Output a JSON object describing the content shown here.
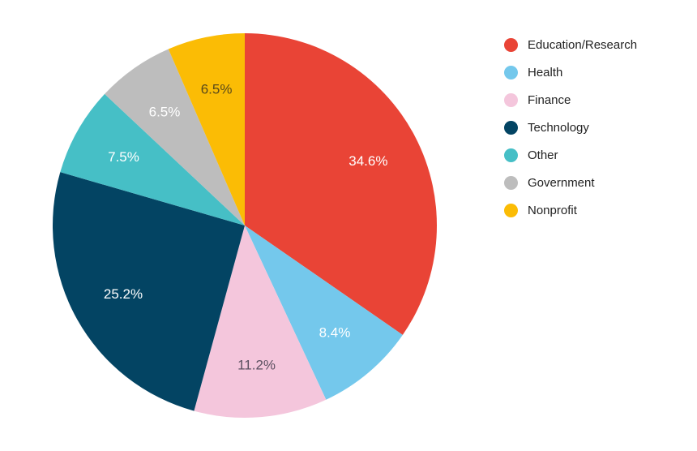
{
  "chart_data": {
    "type": "pie",
    "title": "",
    "legend_position": "right",
    "slices": [
      {
        "label": "Education/Research",
        "value": 34.6,
        "display": "34.6%",
        "color": "#E94436",
        "text_color": "#ffffff"
      },
      {
        "label": "Health",
        "value": 8.4,
        "display": "8.4%",
        "color": "#74C8EC",
        "text_color": "#ffffff"
      },
      {
        "label": "Finance",
        "value": 11.2,
        "display": "11.2%",
        "color": "#F4C6DC",
        "text_color": "#5b5060"
      },
      {
        "label": "Technology",
        "value": 25.2,
        "display": "25.2%",
        "color": "#034463",
        "text_color": "#ffffff"
      },
      {
        "label": "Other",
        "value": 7.5,
        "display": "7.5%",
        "color": "#46BFC6",
        "text_color": "#ffffff"
      },
      {
        "label": "Government",
        "value": 6.5,
        "display": "6.5%",
        "color": "#BDBDBD",
        "text_color": "#ffffff"
      },
      {
        "label": "Nonprofit",
        "value": 6.5,
        "display": "6.5%",
        "color": "#FBBC05",
        "text_color": "#5a4a1a"
      }
    ]
  }
}
